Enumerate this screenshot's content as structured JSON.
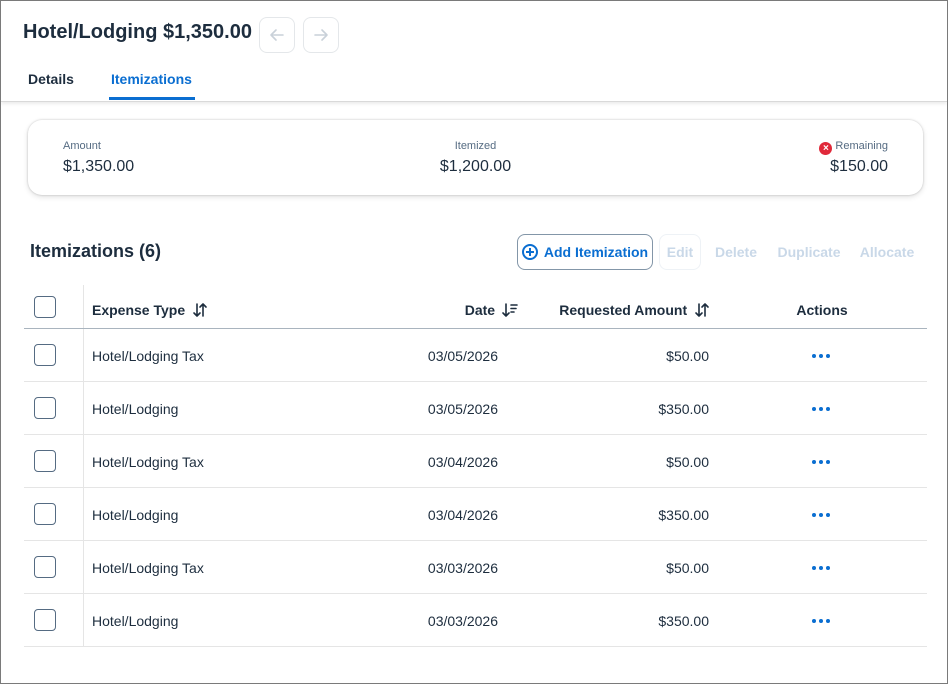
{
  "header": {
    "title": "Hotel/Lodging $1,350.00",
    "tabs": [
      {
        "label": "Details",
        "active": false
      },
      {
        "label": "Itemizations",
        "active": true
      }
    ]
  },
  "summary": {
    "amount_label": "Amount",
    "amount_value": "$1,350.00",
    "itemized_label": "Itemized",
    "itemized_value": "$1,200.00",
    "remaining_label": "Remaining",
    "remaining_value": "$150.00",
    "remaining_icon": "error-circle-icon"
  },
  "section": {
    "title": "Itemizations (6)"
  },
  "toolbar": {
    "add_label": "Add Itemization",
    "edit_label": "Edit",
    "delete_label": "Delete",
    "duplicate_label": "Duplicate",
    "allocate_label": "Allocate"
  },
  "table": {
    "columns": {
      "expense_type": "Expense Type",
      "date": "Date",
      "requested_amount": "Requested Amount",
      "actions": "Actions"
    },
    "rows": [
      {
        "expense_type": "Hotel/Lodging Tax",
        "date": "03/05/2026",
        "amount": "$50.00"
      },
      {
        "expense_type": "Hotel/Lodging",
        "date": "03/05/2026",
        "amount": "$350.00"
      },
      {
        "expense_type": "Hotel/Lodging Tax",
        "date": "03/04/2026",
        "amount": "$50.00"
      },
      {
        "expense_type": "Hotel/Lodging",
        "date": "03/04/2026",
        "amount": "$350.00"
      },
      {
        "expense_type": "Hotel/Lodging Tax",
        "date": "03/03/2026",
        "amount": "$50.00"
      },
      {
        "expense_type": "Hotel/Lodging",
        "date": "03/03/2026",
        "amount": "$350.00"
      }
    ]
  },
  "colors": {
    "accent": "#0a6ed1",
    "error": "#e0293a",
    "text": "#1d2d3e"
  }
}
